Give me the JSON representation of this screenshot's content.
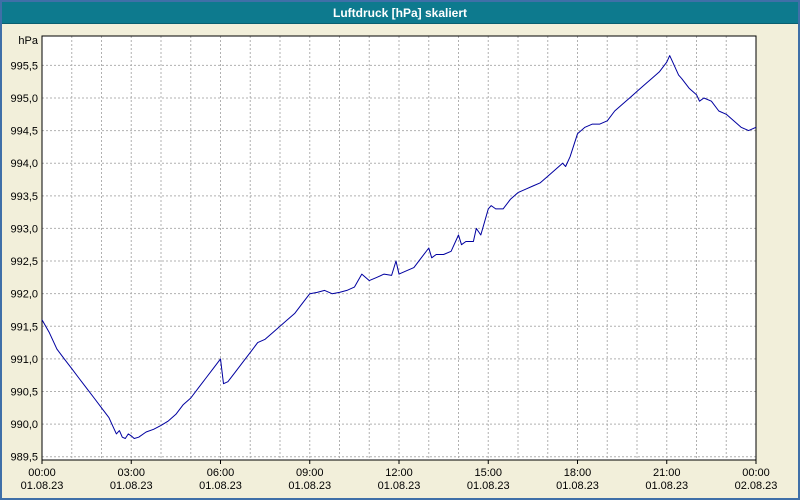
{
  "window": {
    "title": "Luftdruck [hPa] skaliert"
  },
  "colors": {
    "background": "#f2efda",
    "titlebar": "#0d7a8e",
    "titlebar_text": "#ffffff",
    "window_border": "#3f6fa8",
    "plot_background": "#ffffff",
    "grid": "#b0b0b0",
    "axis": "#000000",
    "line": "#0000a0"
  },
  "chart_data": {
    "type": "line",
    "title": "Luftdruck [hPa] skaliert",
    "ylabel": "hPa",
    "xlabel": "",
    "ylim": [
      989.45,
      995.95
    ],
    "xlim": [
      0,
      24
    ],
    "grid": true,
    "x_minor_step_hours": 1,
    "y_ticks": [
      {
        "value": 989.5,
        "label": "989,5"
      },
      {
        "value": 990.0,
        "label": "990,0"
      },
      {
        "value": 990.5,
        "label": "990,5"
      },
      {
        "value": 991.0,
        "label": "991,0"
      },
      {
        "value": 991.5,
        "label": "991,5"
      },
      {
        "value": 992.0,
        "label": "992,0"
      },
      {
        "value": 992.5,
        "label": "992,5"
      },
      {
        "value": 993.0,
        "label": "993,0"
      },
      {
        "value": 993.5,
        "label": "993,5"
      },
      {
        "value": 994.0,
        "label": "994,0"
      },
      {
        "value": 994.5,
        "label": "994,5"
      },
      {
        "value": 995.0,
        "label": "995,0"
      },
      {
        "value": 995.5,
        "label": "995,5"
      }
    ],
    "x_ticks": [
      {
        "hour": 0,
        "time": "00:00",
        "date": "01.08.23"
      },
      {
        "hour": 3,
        "time": "03:00",
        "date": "01.08.23"
      },
      {
        "hour": 6,
        "time": "06:00",
        "date": "01.08.23"
      },
      {
        "hour": 9,
        "time": "09:00",
        "date": "01.08.23"
      },
      {
        "hour": 12,
        "time": "12:00",
        "date": "01.08.23"
      },
      {
        "hour": 15,
        "time": "15:00",
        "date": "01.08.23"
      },
      {
        "hour": 18,
        "time": "18:00",
        "date": "01.08.23"
      },
      {
        "hour": 21,
        "time": "21:00",
        "date": "01.08.23"
      },
      {
        "hour": 24,
        "time": "00:00",
        "date": "02.08.23"
      }
    ],
    "series": [
      {
        "name": "Luftdruck",
        "x": [
          0,
          0.25,
          0.5,
          0.75,
          1,
          1.25,
          1.5,
          1.75,
          2,
          2.25,
          2.4,
          2.5,
          2.6,
          2.7,
          2.8,
          2.9,
          3,
          3.1,
          3.25,
          3.5,
          3.75,
          4,
          4.25,
          4.5,
          4.75,
          5,
          5.25,
          5.5,
          5.75,
          6,
          6.1,
          6.25,
          6.5,
          6.75,
          7,
          7.25,
          7.5,
          7.75,
          8,
          8.25,
          8.5,
          8.75,
          9,
          9.25,
          9.5,
          9.75,
          10,
          10.25,
          10.5,
          10.75,
          11,
          11.25,
          11.5,
          11.75,
          11.9,
          12,
          12.25,
          12.5,
          12.75,
          13,
          13.1,
          13.25,
          13.5,
          13.75,
          14,
          14.1,
          14.25,
          14.5,
          14.6,
          14.75,
          15,
          15.1,
          15.25,
          15.5,
          15.75,
          16,
          16.25,
          16.5,
          16.75,
          17,
          17.25,
          17.5,
          17.6,
          17.75,
          18,
          18.25,
          18.5,
          18.75,
          19,
          19.25,
          19.5,
          19.75,
          20,
          20.25,
          20.5,
          20.75,
          21,
          21.1,
          21.2,
          21.4,
          21.5,
          21.75,
          22,
          22.1,
          22.25,
          22.5,
          22.75,
          23,
          23.25,
          23.5,
          23.75,
          24
        ],
        "y": [
          991.6,
          991.4,
          991.15,
          991.0,
          990.85,
          990.7,
          990.55,
          990.4,
          990.25,
          990.1,
          989.95,
          989.85,
          989.9,
          989.8,
          989.78,
          989.85,
          989.82,
          989.78,
          989.8,
          989.88,
          989.92,
          989.98,
          990.05,
          990.15,
          990.3,
          990.4,
          990.55,
          990.7,
          990.85,
          991.0,
          990.62,
          990.65,
          990.8,
          990.95,
          991.1,
          991.25,
          991.3,
          991.4,
          991.5,
          991.6,
          991.7,
          991.85,
          992.0,
          992.02,
          992.05,
          992.0,
          992.02,
          992.05,
          992.1,
          992.3,
          992.2,
          992.25,
          992.3,
          992.28,
          992.5,
          992.3,
          992.35,
          992.4,
          992.55,
          992.7,
          992.55,
          992.6,
          992.6,
          992.65,
          992.9,
          992.75,
          992.8,
          992.8,
          993.0,
          992.9,
          993.3,
          993.35,
          993.3,
          993.3,
          993.45,
          993.55,
          993.6,
          993.65,
          993.7,
          993.8,
          993.9,
          994.0,
          993.95,
          994.1,
          994.45,
          994.55,
          994.6,
          994.6,
          994.65,
          994.8,
          994.9,
          995.0,
          995.1,
          995.2,
          995.3,
          995.4,
          995.55,
          995.65,
          995.55,
          995.35,
          995.3,
          995.15,
          995.05,
          994.95,
          995.0,
          994.95,
          994.8,
          994.75,
          994.65,
          994.55,
          994.5,
          994.55
        ]
      }
    ]
  }
}
